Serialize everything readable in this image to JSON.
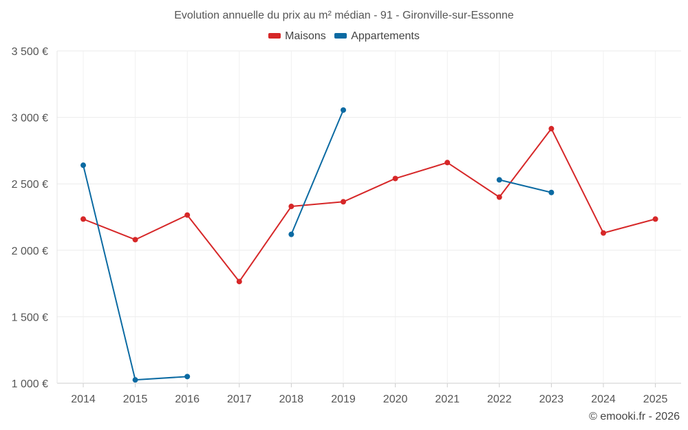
{
  "chart_data": {
    "type": "line",
    "title": "Evolution annuelle du prix au m² médian - 91 - Gironville-sur-Essonne",
    "xlabel": "",
    "ylabel": "",
    "categories": [
      "2014",
      "2015",
      "2016",
      "2017",
      "2018",
      "2019",
      "2020",
      "2021",
      "2022",
      "2023",
      "2024",
      "2025"
    ],
    "yticks": [
      1000,
      1500,
      2000,
      2500,
      3000,
      3500
    ],
    "ytick_labels": [
      "1 000 €",
      "1 500 €",
      "2 000 €",
      "2 500 €",
      "3 000 €",
      "3 500 €"
    ],
    "ylim": [
      1000,
      3500
    ],
    "grid": true,
    "legend_position": "top-center",
    "series": [
      {
        "name": "Maisons",
        "color": "#d62728",
        "values": [
          2235,
          2080,
          2265,
          1765,
          2330,
          2365,
          2540,
          2660,
          2400,
          2915,
          2130,
          2235
        ]
      },
      {
        "name": "Appartements",
        "color": "#0b6aa2",
        "values": [
          2640,
          1025,
          1050,
          null,
          2120,
          3055,
          null,
          null,
          2530,
          2435,
          null,
          null
        ]
      }
    ],
    "credit": "© emooki.fr - 2026"
  }
}
